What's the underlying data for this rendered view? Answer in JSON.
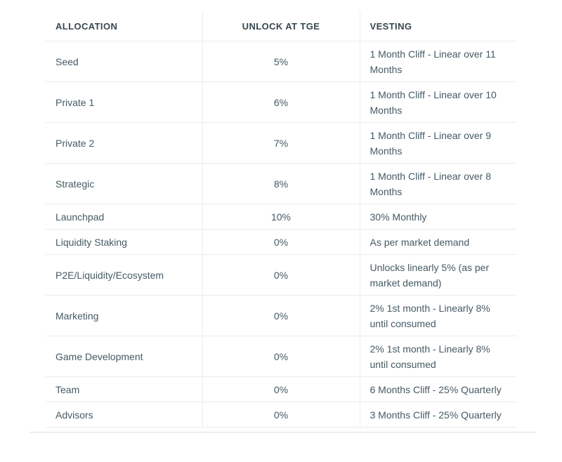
{
  "theme": {
    "border_color": "#ececec",
    "outer_border_color": "#dcdee0",
    "header_text_color": "#37474f",
    "body_text_color": "#455a64",
    "background_color": "#ffffff"
  },
  "table": {
    "columns": [
      {
        "label": "ALLOCATION",
        "align": "left"
      },
      {
        "label": "UNLOCK AT TGE",
        "align": "center"
      },
      {
        "label": "VESTING",
        "align": "left"
      }
    ],
    "rows": [
      {
        "allocation": "Seed",
        "unlock": "5%",
        "vesting": "1 Month Cliff - Linear over 11\nMonths"
      },
      {
        "allocation": "Private 1",
        "unlock": "6%",
        "vesting": "1 Month Cliff - Linear over 10\nMonths"
      },
      {
        "allocation": "Private 2",
        "unlock": "7%",
        "vesting": "1 Month Cliff - Linear over 9\nMonths"
      },
      {
        "allocation": "Strategic",
        "unlock": "8%",
        "vesting": "1 Month Cliff - Linear over 8\nMonths"
      },
      {
        "allocation": "Launchpad",
        "unlock": "10%",
        "vesting": "30% Monthly"
      },
      {
        "allocation": "Liquidity Staking",
        "unlock": "0%",
        "vesting": "As per market demand"
      },
      {
        "allocation": "P2E/Liquidity/Ecosystem",
        "unlock": "0%",
        "vesting": "Unlocks linearly 5% (as per\nmarket demand)"
      },
      {
        "allocation": "Marketing",
        "unlock": "0%",
        "vesting": "2% 1st month - Linearly 8%\nuntil consumed"
      },
      {
        "allocation": "Game Development",
        "unlock": "0%",
        "vesting": "2% 1st month - Linearly 8%\nuntil consumed"
      },
      {
        "allocation": "Team",
        "unlock": "0%",
        "vesting": "6 Months Cliff - 25% Quarterly"
      },
      {
        "allocation": "Advisors",
        "unlock": "0%",
        "vesting": "3 Months Cliff - 25% Quarterly"
      }
    ]
  }
}
